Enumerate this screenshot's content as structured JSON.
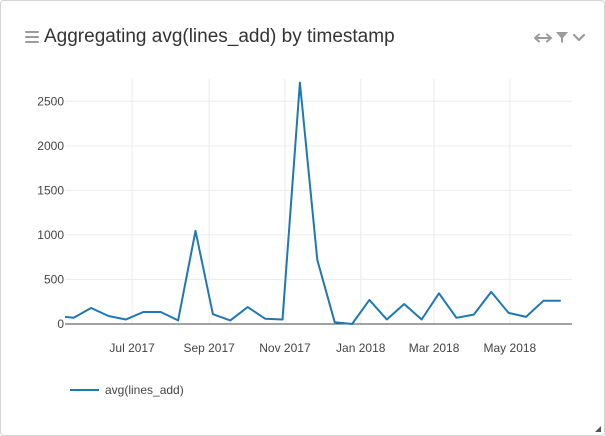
{
  "panel": {
    "title": "Aggregating avg(lines_add) by timestamp",
    "icons": {
      "menu": "hamburger-menu-icon",
      "expand": "horizontal-expand-icon",
      "filter": "filter-icon",
      "collapse": "chevron-down-icon",
      "resize": "resize-corner-icon"
    }
  },
  "chart_data": {
    "type": "line",
    "title": "",
    "xlabel": "",
    "ylabel": "",
    "ylim": [
      0,
      2750
    ],
    "xlim": [
      "2017-05-08",
      "2018-06-20"
    ],
    "yticks": [
      0,
      500,
      1000,
      1500,
      2000,
      2500
    ],
    "xticks": [
      {
        "date": "2017-07-01",
        "label": "Jul 2017"
      },
      {
        "date": "2017-09-01",
        "label": "Sep 2017"
      },
      {
        "date": "2017-11-01",
        "label": "Nov 2017"
      },
      {
        "date": "2018-01-01",
        "label": "Jan 2018"
      },
      {
        "date": "2018-03-01",
        "label": "Mar 2018"
      },
      {
        "date": "2018-05-01",
        "label": "May 2018"
      }
    ],
    "grid": true,
    "legend_position": "bottom-left",
    "color": "#1f77b4",
    "series": [
      {
        "name": "avg(lines_add)",
        "x": [
          "2017-05-08",
          "2017-05-15",
          "2017-05-29",
          "2017-06-12",
          "2017-06-26",
          "2017-07-10",
          "2017-07-24",
          "2017-08-07",
          "2017-08-21",
          "2017-09-04",
          "2017-09-18",
          "2017-10-02",
          "2017-10-16",
          "2017-10-30",
          "2017-11-13",
          "2017-11-27",
          "2017-12-11",
          "2017-12-25",
          "2018-01-08",
          "2018-01-22",
          "2018-02-05",
          "2018-02-19",
          "2018-03-05",
          "2018-03-19",
          "2018-04-02",
          "2018-04-16",
          "2018-04-30",
          "2018-05-14",
          "2018-05-28",
          "2018-06-11"
        ],
        "values": [
          80,
          70,
          180,
          90,
          50,
          135,
          135,
          40,
          1045,
          110,
          40,
          190,
          60,
          50,
          2710,
          720,
          20,
          0,
          270,
          50,
          225,
          50,
          345,
          70,
          105,
          360,
          125,
          80,
          260,
          260
        ]
      }
    ]
  }
}
